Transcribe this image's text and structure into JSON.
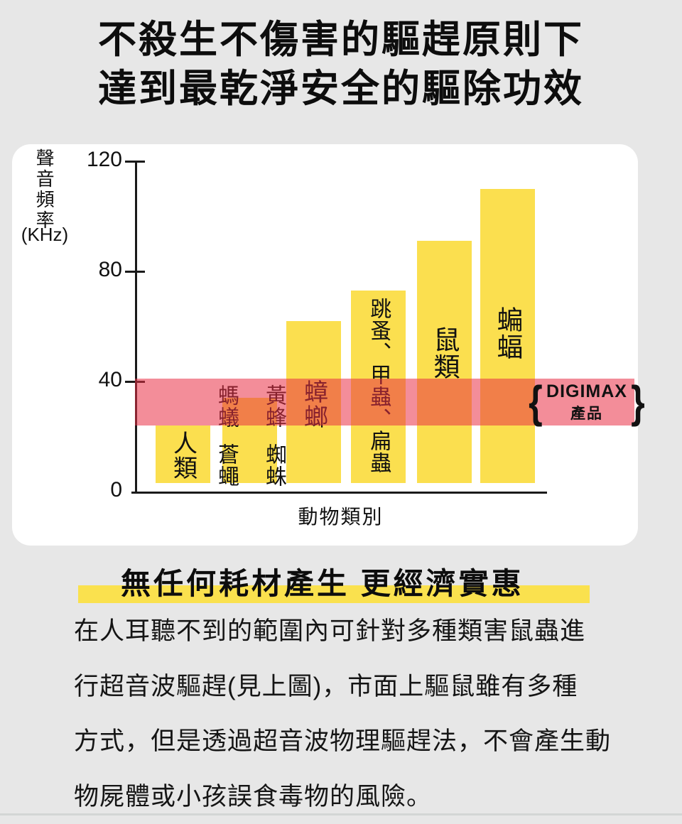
{
  "colors": {
    "background": "#E7E7E7",
    "card": "#FFFFFF",
    "bar_yellow": "#FBDF4F",
    "highlight_yellow": "#FAE14E",
    "band_red": "#E93046",
    "band_opacity": 0.55,
    "text": "#111111"
  },
  "title": {
    "line1": "不殺生不傷害的驅趕原則下",
    "line2": "達到最乾淨安全的驅除功效"
  },
  "chart_data": {
    "type": "bar",
    "title": "",
    "xlabel": "動物類別",
    "ylabel": "聲音頻率",
    "ylabel_unit": "(KHz)",
    "ylim": [
      0,
      120
    ],
    "yticks": [
      120,
      80,
      40,
      0
    ],
    "grid": false,
    "legend_position": "band-right-inside",
    "categories": [
      "人類",
      "螞蟻 蒼蠅 黃蜂 蜘蛛",
      "蟑螂",
      "跳蚤、甲蟲、扁蟲",
      "鼠類",
      "蝙蝠"
    ],
    "values_khz": [
      24,
      34,
      62,
      73,
      91,
      110
    ],
    "bar_base_khz": 3,
    "bar_label_words": [
      [
        "人類"
      ],
      [
        "螞蟻",
        "蒼蠅",
        "黃蜂",
        "蜘蛛"
      ],
      [
        "蟑螂"
      ],
      [
        "跳蚤、甲蟲、扁蟲"
      ],
      [
        "鼠類"
      ],
      [
        "蝙蝠"
      ]
    ],
    "highlight_band": {
      "khz_range": [
        24,
        41
      ],
      "braces": [
        "{",
        "}"
      ],
      "label_line1": "DIGIMAX",
      "label_line2": "產品"
    }
  },
  "subtitle": {
    "text": "無任何耗材產生 更經濟實惠"
  },
  "paragraph": {
    "lines": [
      "在人耳聽不到的範圍內可針對多種類害鼠蟲進",
      "行超音波驅趕(見上圖)，市面上驅鼠雖有多種",
      "方式，但是透過超音波物理驅趕法，不會產生動",
      "物屍體或小孩誤食毒物的風險。"
    ]
  }
}
